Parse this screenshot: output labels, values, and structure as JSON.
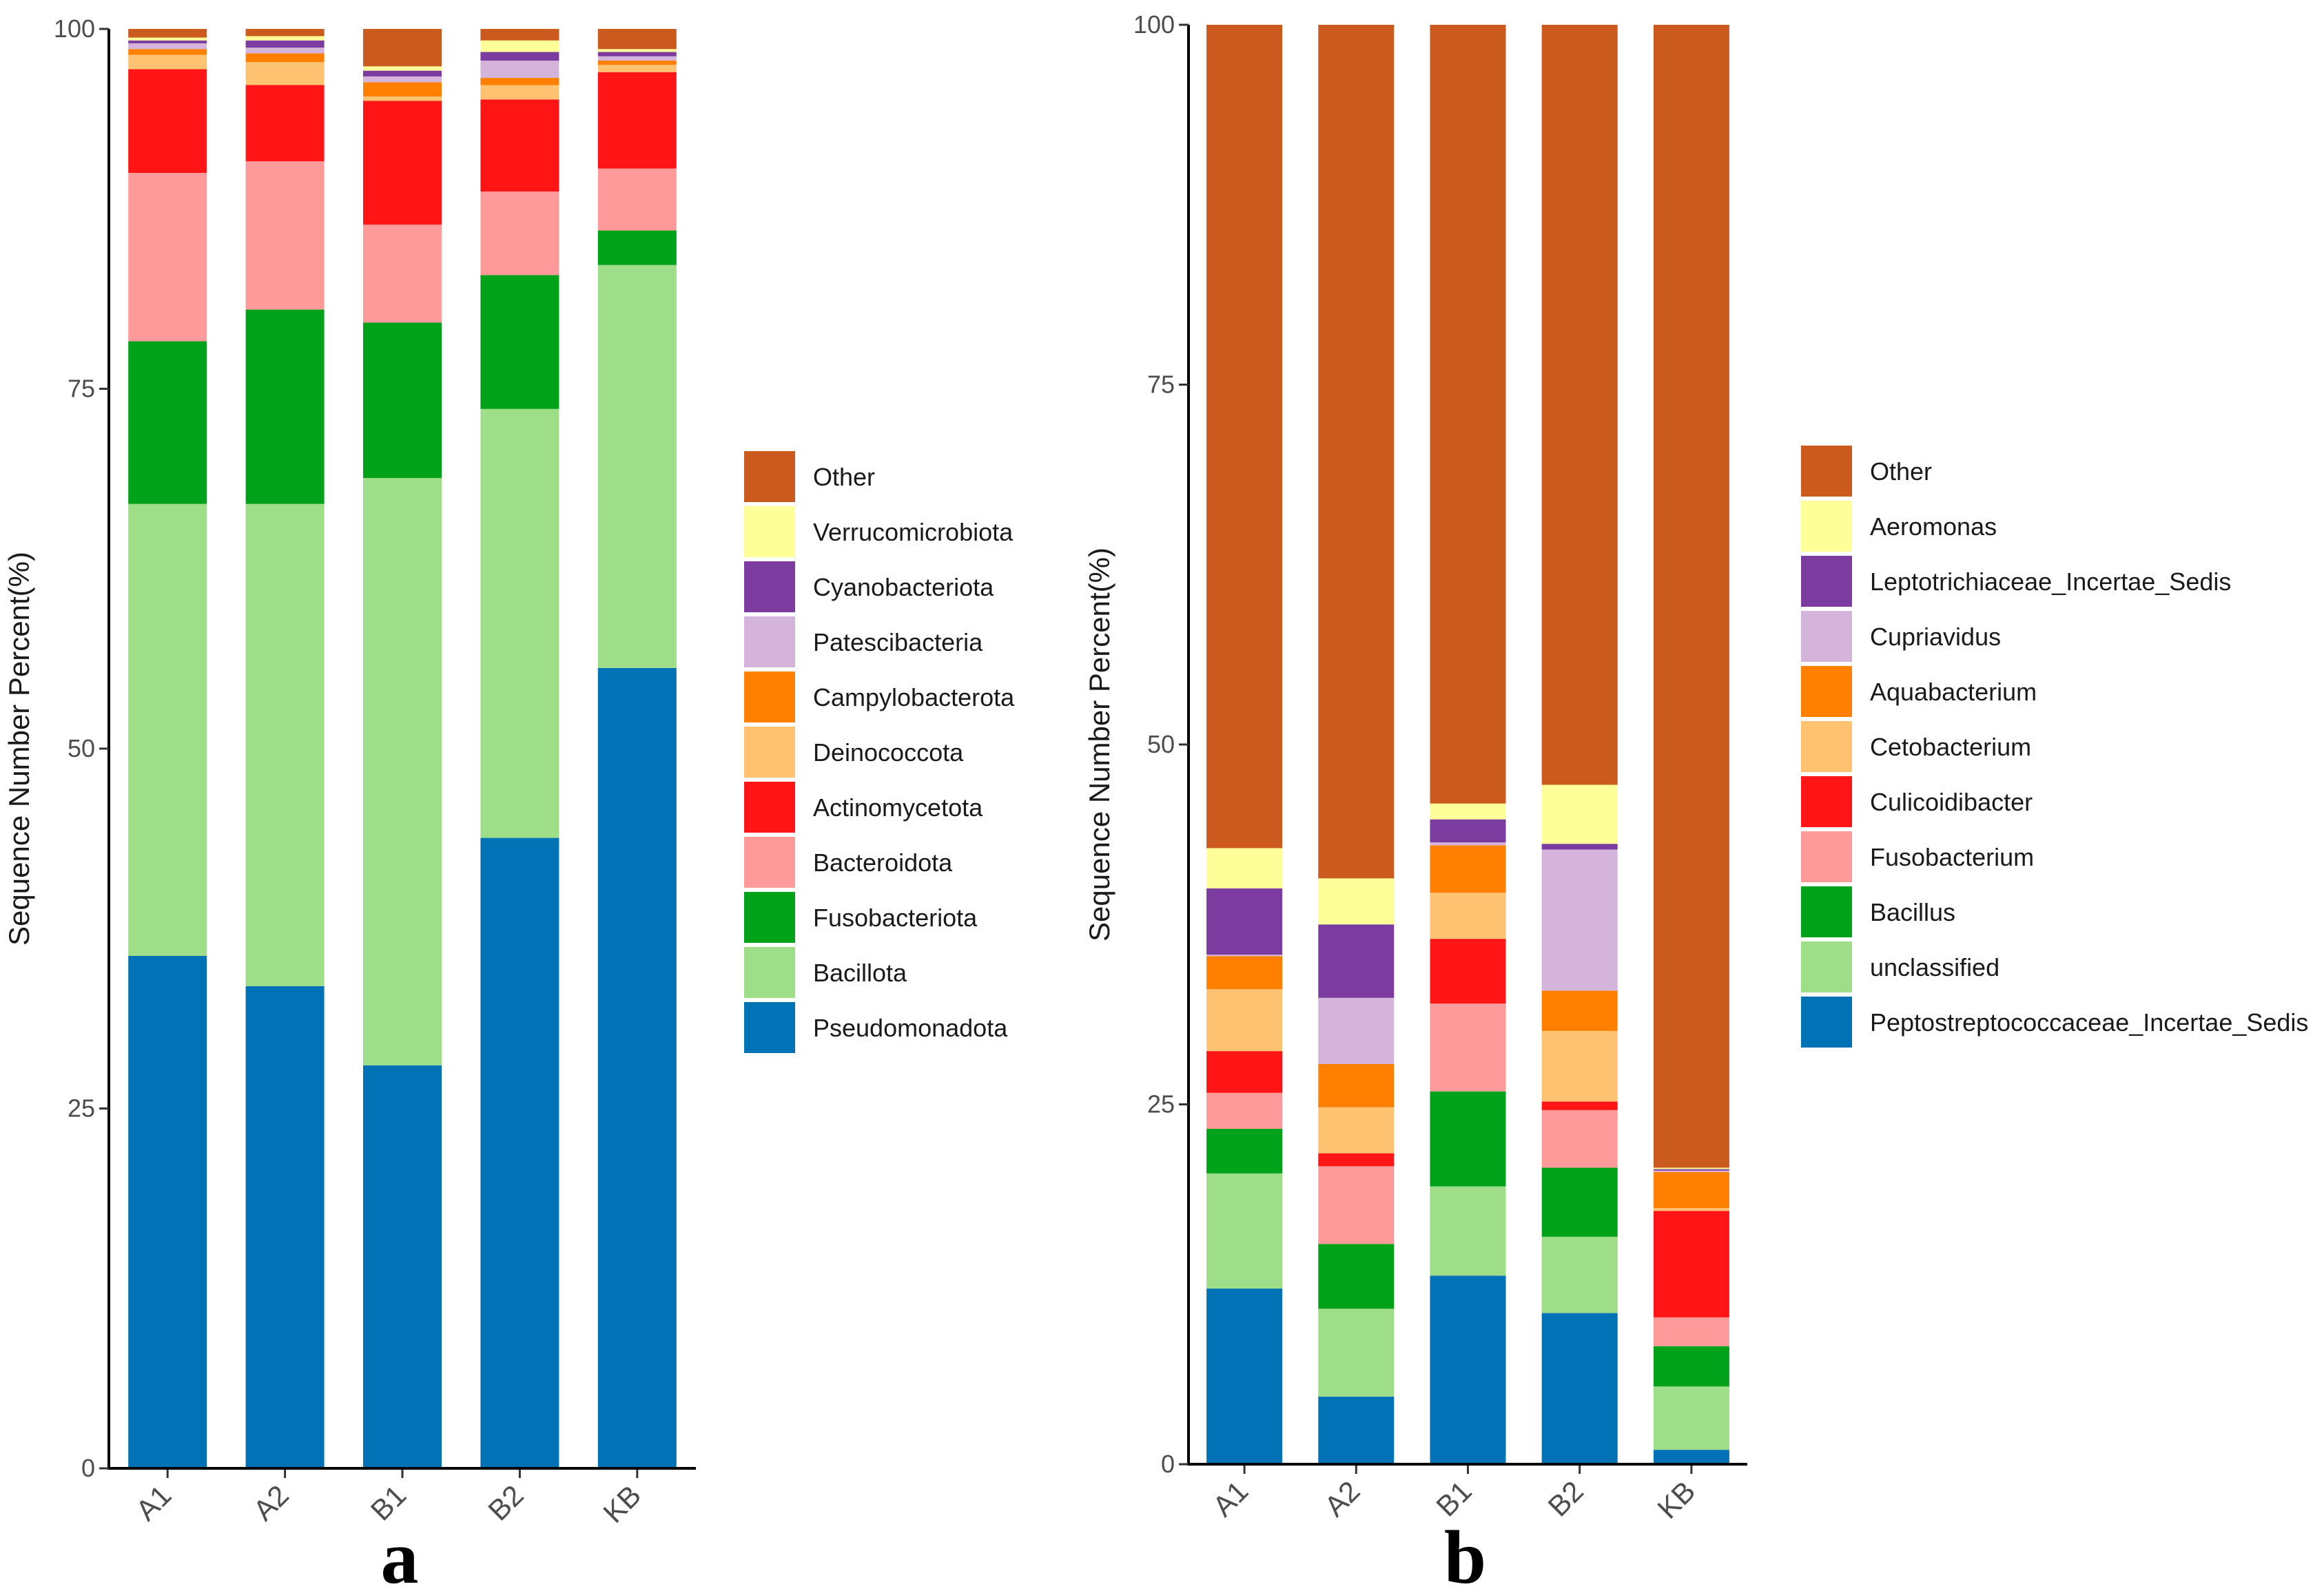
{
  "chart_data": [
    {
      "type": "bar",
      "stacked": true,
      "panel_label": "a",
      "title": "",
      "xlabel": "",
      "ylabel": "Sequence Number Percent(%)",
      "ylim": [
        0,
        100
      ],
      "yticks": [
        0,
        25,
        50,
        75,
        100
      ],
      "grid": false,
      "legend_position": "right",
      "categories": [
        "A1",
        "A2",
        "B1",
        "B2",
        "KB"
      ],
      "series": [
        {
          "name": "Pseudomonadota",
          "color": "#0072B5",
          "values": [
            35.6,
            33.5,
            28.0,
            43.8,
            55.6
          ]
        },
        {
          "name": "Bacillota",
          "color": "#9EDE88",
          "values": [
            31.4,
            33.5,
            40.8,
            29.8,
            28.0
          ]
        },
        {
          "name": "Fusobacteriota",
          "color": "#00A21A",
          "values": [
            11.3,
            13.5,
            10.8,
            9.3,
            2.4
          ]
        },
        {
          "name": "Bacteroidota",
          "color": "#FE9A9A",
          "values": [
            11.7,
            10.3,
            6.8,
            5.8,
            4.3
          ]
        },
        {
          "name": "Actinomycetota",
          "color": "#FF1515",
          "values": [
            7.2,
            5.3,
            8.6,
            6.4,
            6.7
          ]
        },
        {
          "name": "Deinococcota",
          "color": "#FEC270",
          "values": [
            1.0,
            1.6,
            0.3,
            1.0,
            0.5
          ]
        },
        {
          "name": "Campylobacterota",
          "color": "#FF8000",
          "values": [
            0.4,
            0.6,
            1.0,
            0.5,
            0.3
          ]
        },
        {
          "name": "Patescibacteria",
          "color": "#D4B4DB",
          "values": [
            0.4,
            0.4,
            0.4,
            1.2,
            0.3
          ]
        },
        {
          "name": "Cyanobacteriota",
          "color": "#7B3B9F",
          "values": [
            0.2,
            0.5,
            0.4,
            0.6,
            0.3
          ]
        },
        {
          "name": "Verrucomicrobiota",
          "color": "#FFFF99",
          "values": [
            0.2,
            0.3,
            0.3,
            0.8,
            0.2
          ]
        },
        {
          "name": "Other",
          "color": "#CA5A1E",
          "values": [
            0.6,
            0.5,
            2.6,
            0.8,
            1.4
          ]
        }
      ]
    },
    {
      "type": "bar",
      "stacked": true,
      "panel_label": "b",
      "title": "",
      "xlabel": "",
      "ylabel": "Sequence Number Percent(%)",
      "ylim": [
        0,
        100
      ],
      "yticks": [
        0,
        25,
        50,
        75,
        100
      ],
      "grid": false,
      "legend_position": "right",
      "categories": [
        "A1",
        "A2",
        "B1",
        "B2",
        "KB"
      ],
      "series": [
        {
          "name": "Peptostreptococcaceae_Incertae_Sedis",
          "color": "#0072B5",
          "values": [
            12.2,
            4.7,
            13.1,
            10.5,
            1.0
          ]
        },
        {
          "name": "unclassified",
          "color": "#9EDE88",
          "values": [
            8.0,
            6.1,
            6.2,
            5.3,
            4.4
          ]
        },
        {
          "name": "Bacillus",
          "color": "#00A21A",
          "values": [
            3.1,
            4.5,
            6.6,
            4.8,
            2.8
          ]
        },
        {
          "name": "Fusobacterium",
          "color": "#FE9A9A",
          "values": [
            2.5,
            5.4,
            6.1,
            4.0,
            2.0
          ]
        },
        {
          "name": "Culicoidibacter",
          "color": "#FF1515",
          "values": [
            2.9,
            0.9,
            4.5,
            0.6,
            7.4
          ]
        },
        {
          "name": "Cetobacterium",
          "color": "#FEC270",
          "values": [
            4.3,
            3.2,
            3.2,
            4.9,
            0.2
          ]
        },
        {
          "name": "Aquabacterium",
          "color": "#FF8000",
          "values": [
            2.3,
            3.0,
            3.3,
            2.8,
            2.5
          ]
        },
        {
          "name": "Cupriavidus",
          "color": "#D4B4DB",
          "values": [
            0.1,
            4.6,
            0.2,
            9.8,
            0.1
          ]
        },
        {
          "name": "Leptotrichiaceae_Incertae_Sedis",
          "color": "#7B3B9F",
          "values": [
            4.6,
            5.1,
            1.6,
            0.4,
            0.1
          ]
        },
        {
          "name": "Aeromonas",
          "color": "#FFFF99",
          "values": [
            2.8,
            3.2,
            1.1,
            4.1,
            0.1
          ]
        },
        {
          "name": "Other",
          "color": "#CA5A1E",
          "values": [
            57.2,
            59.3,
            54.1,
            52.8,
            79.4
          ]
        }
      ]
    }
  ]
}
